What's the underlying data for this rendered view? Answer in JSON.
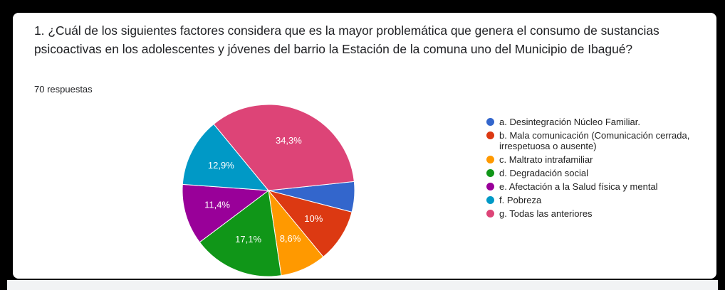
{
  "chart_data": {
    "type": "pie",
    "title": "1. ¿Cuál de los siguientes factores considera que es la mayor problemática que genera el consumo de sustancias psicoactivas en los adolescentes y jóvenes del barrio la Estación de la comuna uno del Municipio de Ibagué?",
    "subtitle": "70 respuestas",
    "legend": "right",
    "series": [
      {
        "categories": [
          "a. Desintegración Núcleo Familiar.",
          "b. Mala comunicación (Comunicación cerrada, irrespetuosa o ausente)",
          "c. Maltrato intrafamiliar",
          "d. Degradación social",
          "e. Afectación a la Salud física y mental",
          "f. Pobreza",
          "g. Todas las anteriores"
        ],
        "values": [
          5.7,
          10,
          8.6,
          17.1,
          11.4,
          12.9,
          34.3
        ],
        "value_labels": [
          null,
          "10%",
          "8,6%",
          "17,1%",
          "11,4%",
          "12,9%",
          "34,3%"
        ],
        "colors": [
          "#3366cc",
          "#dc3912",
          "#ff9900",
          "#109618",
          "#990099",
          "#0099c6",
          "#dd4477"
        ]
      }
    ]
  }
}
